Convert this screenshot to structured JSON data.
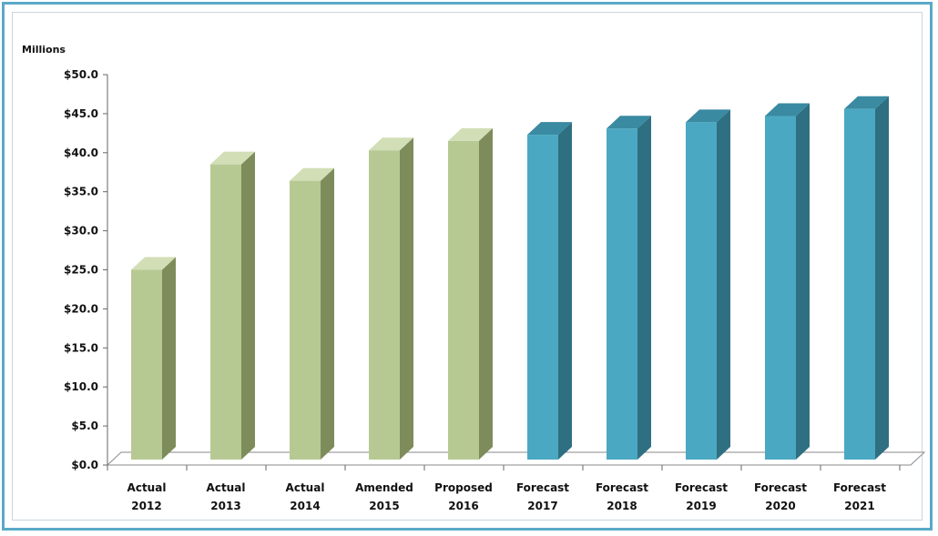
{
  "chart_data": {
    "type": "bar",
    "ylabel": "Millions",
    "ylim": [
      0,
      50
    ],
    "yticks": [
      "$0.0",
      "$5.0",
      "$10.0",
      "$15.0",
      "$20.0",
      "$25.0",
      "$30.0",
      "$35.0",
      "$40.0",
      "$45.0",
      "$50.0"
    ],
    "categories": [
      [
        "Actual",
        "2012"
      ],
      [
        "Actual",
        "2013"
      ],
      [
        "Actual",
        "2014"
      ],
      [
        "Amended",
        "2015"
      ],
      [
        "Proposed",
        "2016"
      ],
      [
        "Forecast",
        "2017"
      ],
      [
        "Forecast",
        "2018"
      ],
      [
        "Forecast",
        "2019"
      ],
      [
        "Forecast",
        "2020"
      ],
      [
        "Forecast",
        "2021"
      ]
    ],
    "values": [
      25.0,
      38.5,
      36.4,
      40.3,
      41.5,
      42.3,
      43.1,
      43.9,
      44.7,
      45.6
    ],
    "grid": false,
    "three_d": true,
    "colors": {
      "actual_front": "#b7c993",
      "actual_side": "#7d8c5a",
      "actual_top": "#d2deb6",
      "forecast_front": "#4ba8c2",
      "forecast_side": "#2f6f82",
      "forecast_top": "#3a8aa1",
      "axis": "#666666"
    },
    "forecast_start_index": 5
  }
}
